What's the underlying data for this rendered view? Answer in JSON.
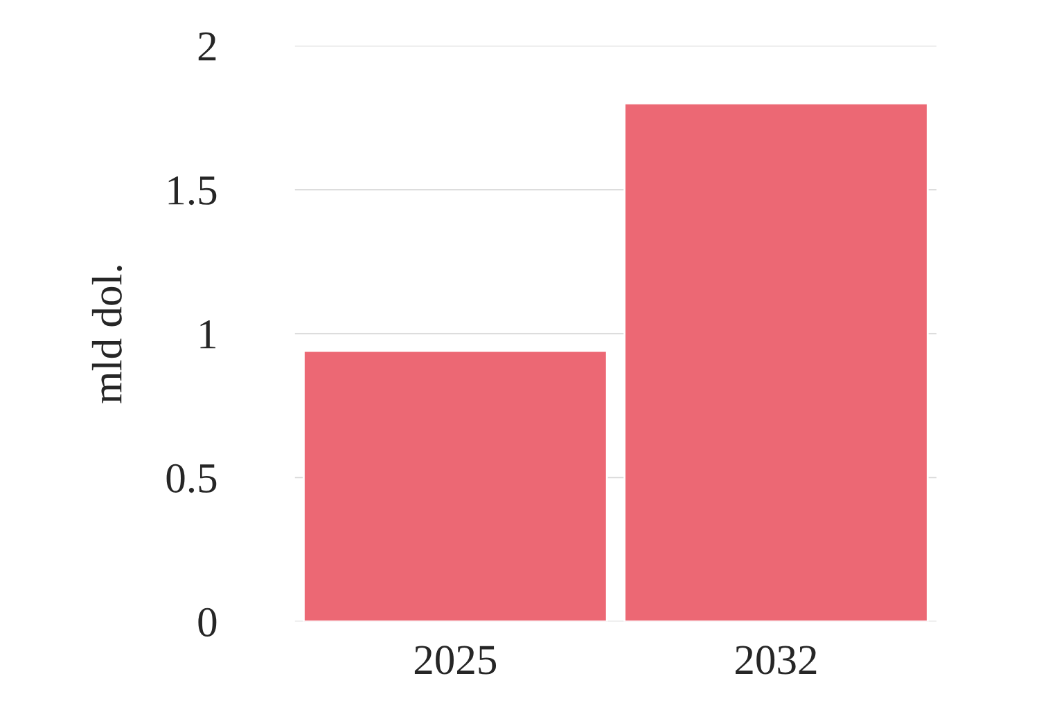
{
  "chart_data": {
    "type": "bar",
    "ylabel": "mld dol.",
    "categories": [
      "2025",
      "2032"
    ],
    "values": [
      0.94,
      1.8
    ],
    "color": "#ec6874",
    "ylim": [
      0,
      2
    ],
    "yticks": [
      0,
      0.5,
      1,
      1.5,
      2
    ],
    "grid": "y"
  }
}
